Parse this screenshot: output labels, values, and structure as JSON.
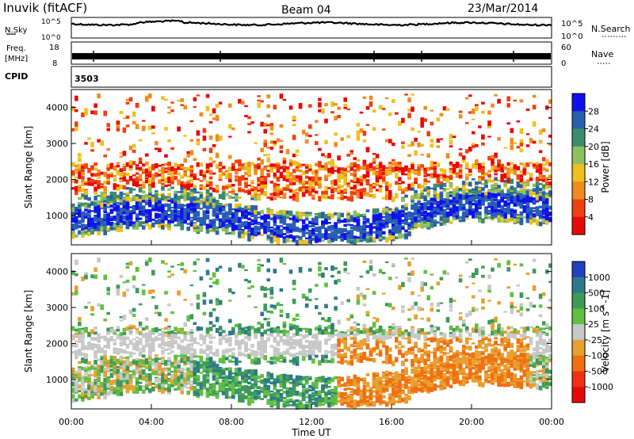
{
  "header": {
    "title": "Inuvik (fitACF)",
    "beam": "Beam 04",
    "date": "23/Mar/2014"
  },
  "strips": {
    "nsky": {
      "label": "N.Sky",
      "ticks": [
        "10^5",
        "10^0"
      ],
      "right_label": "N.Search",
      "right_ticks": [
        "10^5",
        "10^0"
      ]
    },
    "freq": {
      "label_line1": "Freq.",
      "label_line2": "[MHz]",
      "ticks": [
        "18",
        "8"
      ],
      "right_label": "Nave",
      "right_ticks": [
        "60",
        "0"
      ]
    },
    "cpid": {
      "label": "CPID",
      "value": "3503"
    }
  },
  "chart_data": [
    {
      "type": "heatmap",
      "title": "",
      "ylabel": "Slant Range [km]",
      "xlabel": "",
      "ylim": [
        180,
        4500
      ],
      "yticks": [
        "1000",
        "2000",
        "3000",
        "4000"
      ],
      "xlim": [
        "00:00",
        "24:00"
      ],
      "colorbar": {
        "label": "Power [dB]",
        "ticks": [
          "4",
          "8",
          "12",
          "16",
          "20",
          "24",
          "28"
        ],
        "colors": [
          "#1010ee",
          "#2860b0",
          "#3d8c6c",
          "#8cc060",
          "#f0c020",
          "#f08c20",
          "#f04010",
          "#e80808"
        ]
      },
      "dominant_echoes": [
        {
          "from": "00:00",
          "to": "24:00",
          "range_km": [
            500,
            2400
          ],
          "note": "scatter band"
        }
      ]
    },
    {
      "type": "heatmap",
      "title": "",
      "ylabel": "Slant Range [km]",
      "xlabel": "Time UT",
      "ylim": [
        180,
        4500
      ],
      "yticks": [
        "1000",
        "2000",
        "3000",
        "4000"
      ],
      "xticks": [
        "00:00",
        "04:00",
        "08:00",
        "12:00",
        "16:00",
        "20:00",
        "00:00"
      ],
      "colorbar": {
        "label": "Velocity [m s^-1]",
        "ticks": [
          "1000",
          "500",
          "100",
          "25",
          "-25",
          "-100",
          "-500",
          "-1000"
        ],
        "colors": [
          "#2040c0",
          "#2e7a8a",
          "#3d9a5a",
          "#60c040",
          "#c8c8c8",
          "#e8a030",
          "#f07010",
          "#f03010",
          "#e80808"
        ]
      }
    }
  ]
}
